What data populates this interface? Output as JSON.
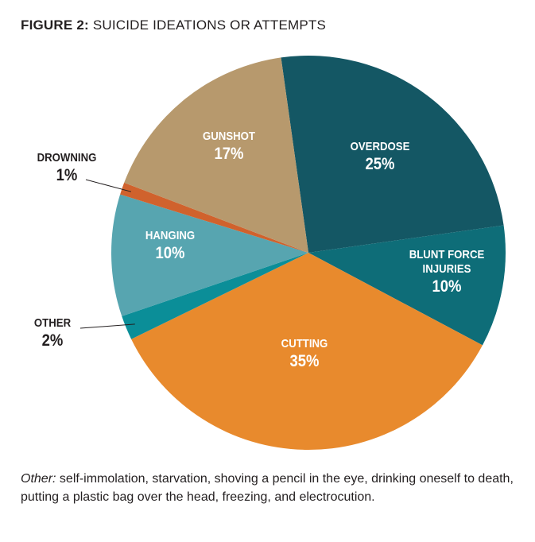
{
  "chart_data": {
    "type": "pie",
    "title_prefix": "FIGURE 2:",
    "title": "SUICIDE IDEATIONS OR ATTEMPTS",
    "start_angle_deg": -8,
    "direction": "clockwise",
    "slices": [
      {
        "label": "OVERDOSE",
        "label_lines": [
          "OVERDOSE"
        ],
        "value": 25,
        "display": "25%",
        "color": "#145764",
        "label_color": "white"
      },
      {
        "label": "BLUNT FORCE INJURIES",
        "label_lines": [
          "BLUNT FORCE",
          "INJURIES"
        ],
        "value": 10,
        "display": "10%",
        "color": "#0e6d78",
        "label_color": "white"
      },
      {
        "label": "CUTTING",
        "label_lines": [
          "CUTTING"
        ],
        "value": 35,
        "display": "35%",
        "color": "#e88a2d",
        "label_color": "white"
      },
      {
        "label": "OTHER",
        "label_lines": [
          "OTHER"
        ],
        "value": 2,
        "display": "2%",
        "color": "#0b8e98",
        "label_color": "dark"
      },
      {
        "label": "HANGING",
        "label_lines": [
          "HANGING"
        ],
        "value": 10,
        "display": "10%",
        "color": "#57a5b0",
        "label_color": "white"
      },
      {
        "label": "DROWNING",
        "label_lines": [
          "DROWNING"
        ],
        "value": 1,
        "display": "1%",
        "color": "#d0622d",
        "label_color": "dark"
      },
      {
        "label": "GUNSHOT",
        "label_lines": [
          "GUNSHOT"
        ],
        "value": 17,
        "display": "17%",
        "color": "#b7996d",
        "label_color": "white"
      }
    ]
  },
  "note": {
    "label": "Other:",
    "text": " self-immolation, starvation, shoving a pencil in the eye, drinking oneself to death, putting a plastic bag over the head, freezing, and electrocution."
  }
}
